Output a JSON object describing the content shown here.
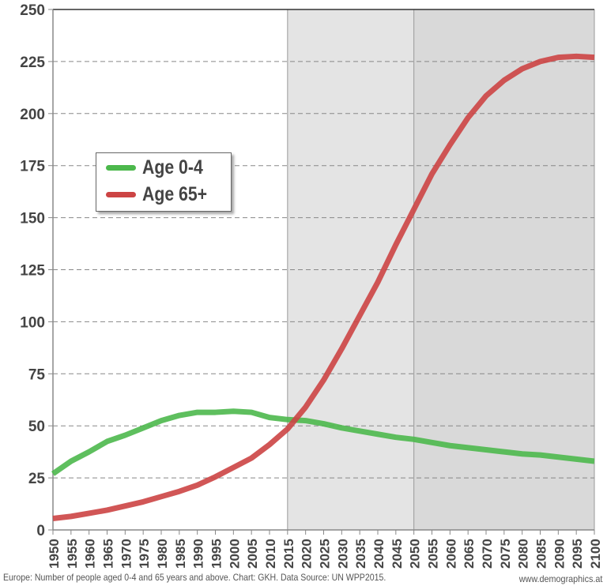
{
  "chart_data": {
    "type": "line",
    "title": "",
    "xlabel": "",
    "ylabel": "",
    "ylim": [
      0,
      250
    ],
    "yticks": [
      0,
      25,
      50,
      75,
      100,
      125,
      150,
      175,
      200,
      225,
      250
    ],
    "grid": "horizontal dashed",
    "legend_position": "left-middle",
    "shaded_regions": [
      {
        "from": 2015,
        "to": 2050,
        "color": "#e4e4e4"
      },
      {
        "from": 2050,
        "to": 2100,
        "color": "#d9d9d9"
      }
    ],
    "x": [
      1950,
      1955,
      1960,
      1965,
      1970,
      1975,
      1980,
      1985,
      1990,
      1995,
      2000,
      2005,
      2010,
      2015,
      2020,
      2025,
      2030,
      2035,
      2040,
      2045,
      2050,
      2055,
      2060,
      2065,
      2070,
      2075,
      2080,
      2085,
      2090,
      2095,
      2100
    ],
    "series": [
      {
        "name": "Age 0-4",
        "color": "#4cb84c",
        "values": [
          27,
          33,
          37.5,
          42.5,
          45.5,
          49,
          52.5,
          55,
          56.5,
          56.5,
          57,
          56.5,
          54,
          53,
          52.5,
          51,
          49,
          47.5,
          46,
          44.5,
          43.5,
          42,
          40.5,
          39.5,
          38.5,
          37.5,
          36.5,
          36,
          35,
          34,
          33
        ]
      },
      {
        "name": "Age 65+",
        "color": "#cc4444",
        "values": [
          5.5,
          6.5,
          8,
          9.5,
          11.5,
          13.5,
          16,
          18.5,
          21.5,
          25.5,
          30,
          34.5,
          41,
          48.5,
          59,
          72,
          87,
          103,
          119,
          137,
          154,
          171,
          185,
          198,
          208.5,
          216,
          221.5,
          225,
          227,
          227.5,
          227
        ]
      }
    ]
  },
  "caption": "Europe:  Number of people aged 0-4 and 65 years and above. Chart: GKH.  Data Source: UN  WPP2015.",
  "website": "www.demographics.at"
}
